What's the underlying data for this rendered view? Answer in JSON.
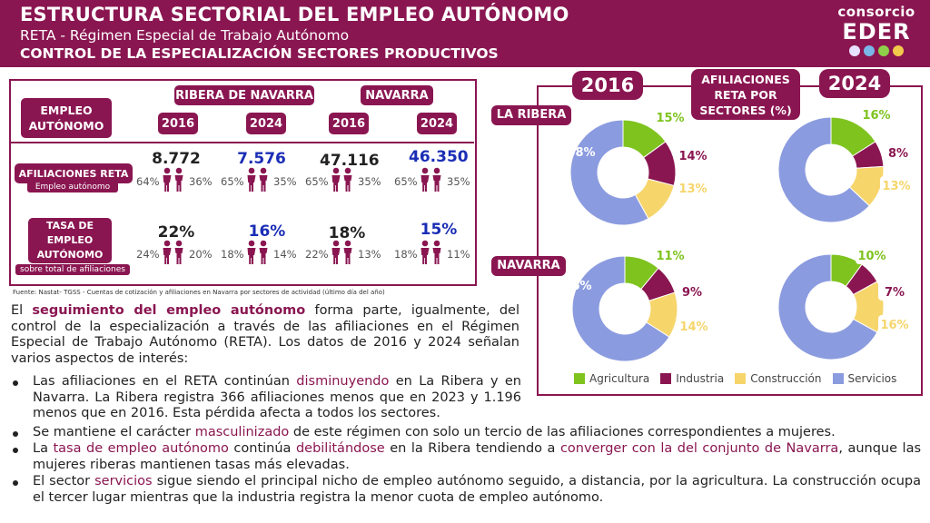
{
  "header": {
    "title": "ESTRUCTURA SECTORIAL DEL EMPLEO AUTÓNOMO",
    "subtitle": "RETA - Régimen Especial de Trabajo Autónomo",
    "control": "CONTROL DE LA ESPECIALIZACIÓN SECTORES PRODUCTIVOS"
  },
  "logo": {
    "top": "consorcio",
    "main": "EDER",
    "colors": [
      "#e8e0ff",
      "#7bb6e8",
      "#8fd04a",
      "#f3c94b"
    ]
  },
  "table": {
    "row_header": "EMPLEO AUTÓNOMO",
    "region1": "RIBERA DE NAVARRA",
    "region2": "NAVARRA",
    "years": [
      "2016",
      "2024",
      "2016",
      "2024"
    ],
    "rows": [
      {
        "label": "AFILIACIONES RETA",
        "sublabel": "Empleo autónomo",
        "values": [
          "8.772",
          "7.576",
          "47.116",
          "46.350"
        ],
        "male": [
          "64%",
          "65%",
          "65%",
          "65%"
        ],
        "female": [
          "36%",
          "35%",
          "35%",
          "35%"
        ]
      },
      {
        "label": "TASA DE EMPLEO AUTÓNOMO",
        "sublabel": "sobre total de afiliaciones",
        "values": [
          "22%",
          "16%",
          "18%",
          "15%"
        ],
        "male": [
          "24%",
          "18%",
          "22%",
          "18%"
        ],
        "female": [
          "20%",
          "14%",
          "13%",
          "11%"
        ]
      }
    ],
    "highlight_color": "#1a2db5"
  },
  "source": "Fuente: Nastat- TGSS - Cuentas de cotización y afiliaciones en Navarra  por sectores de actividad (último día del año)",
  "text": {
    "intro_pre": "El ",
    "intro_bold": "seguimiento del empleo autónomo",
    "intro_post": " forma parte, igualmente, del control de la especialización a través de las afiliaciones en el Régimen Especial de Trabajo Autónomo (RETA). Los datos de 2016 y 2024 señalan varios aspectos de interés:",
    "b1_pre": "Las afiliaciones en el RETA continúan ",
    "b1_hl": "disminuyendo",
    "b1_post": " en La Ribera y en Navarra. La Ribera registra 366 afiliaciones menos  que en 2023 y 1.196 menos que en 2016. Esta pérdida afecta a todos los sectores.",
    "b2_pre": "Se mantiene el carácter ",
    "b2_hl": "masculinizado",
    "b2_post": " de este régimen con solo un tercio de las afiliaciones correspondientes a mujeres.",
    "b3_pre": "La ",
    "b3_hl1": "tasa de empleo autónomo",
    "b3_mid1": " continúa ",
    "b3_hl2": "debilitándose",
    "b3_mid2": " en la Ribera tendiendo a ",
    "b3_hl3": "converger con la del conjunto de Navarra",
    "b3_post": ", aunque las mujeres riberas mantienen tasas más elevadas.",
    "b4_pre": "El sector ",
    "b4_hl": "servicios",
    "b4_post": " sigue siendo el principal nicho de empleo autónomo seguido, a distancia, por la agricultura. La construcción ocupa el tercer lugar mientras que la industria registra la menor cuota de empleo autónomo."
  },
  "panel": {
    "year_left": "2016",
    "year_right": "2024",
    "chart_title": "AFILIACIONES RETA POR SECTORES (%)",
    "region_top": "LA RIBERA",
    "region_bottom": "NAVARRA"
  },
  "chart_data": [
    {
      "type": "pie",
      "region": "LA RIBERA",
      "year": "2016",
      "categories": [
        "Agricultura",
        "Industria",
        "Construcción",
        "Servicios"
      ],
      "values": [
        15,
        14,
        13,
        58
      ]
    },
    {
      "type": "pie",
      "region": "LA RIBERA",
      "year": "2024",
      "categories": [
        "Agricultura",
        "Industria",
        "Construcción",
        "Servicios"
      ],
      "values": [
        16,
        8,
        13,
        63
      ]
    },
    {
      "type": "pie",
      "region": "NAVARRA",
      "year": "2016",
      "categories": [
        "Agricultura",
        "Industria",
        "Construcción",
        "Servicios"
      ],
      "values": [
        11,
        9,
        14,
        66
      ]
    },
    {
      "type": "pie",
      "region": "NAVARRA",
      "year": "2024",
      "categories": [
        "Agricultura",
        "Industria",
        "Construcción",
        "Servicios"
      ],
      "values": [
        10,
        7,
        16,
        67
      ]
    }
  ],
  "legend": {
    "items": [
      "Agricultura",
      "Industria",
      "Construcción",
      "Servicios"
    ],
    "colors": [
      "#7fc31f",
      "#8a1651",
      "#f6d56b",
      "#8b9bdf"
    ]
  },
  "colors": {
    "brand": "#8a1651"
  }
}
